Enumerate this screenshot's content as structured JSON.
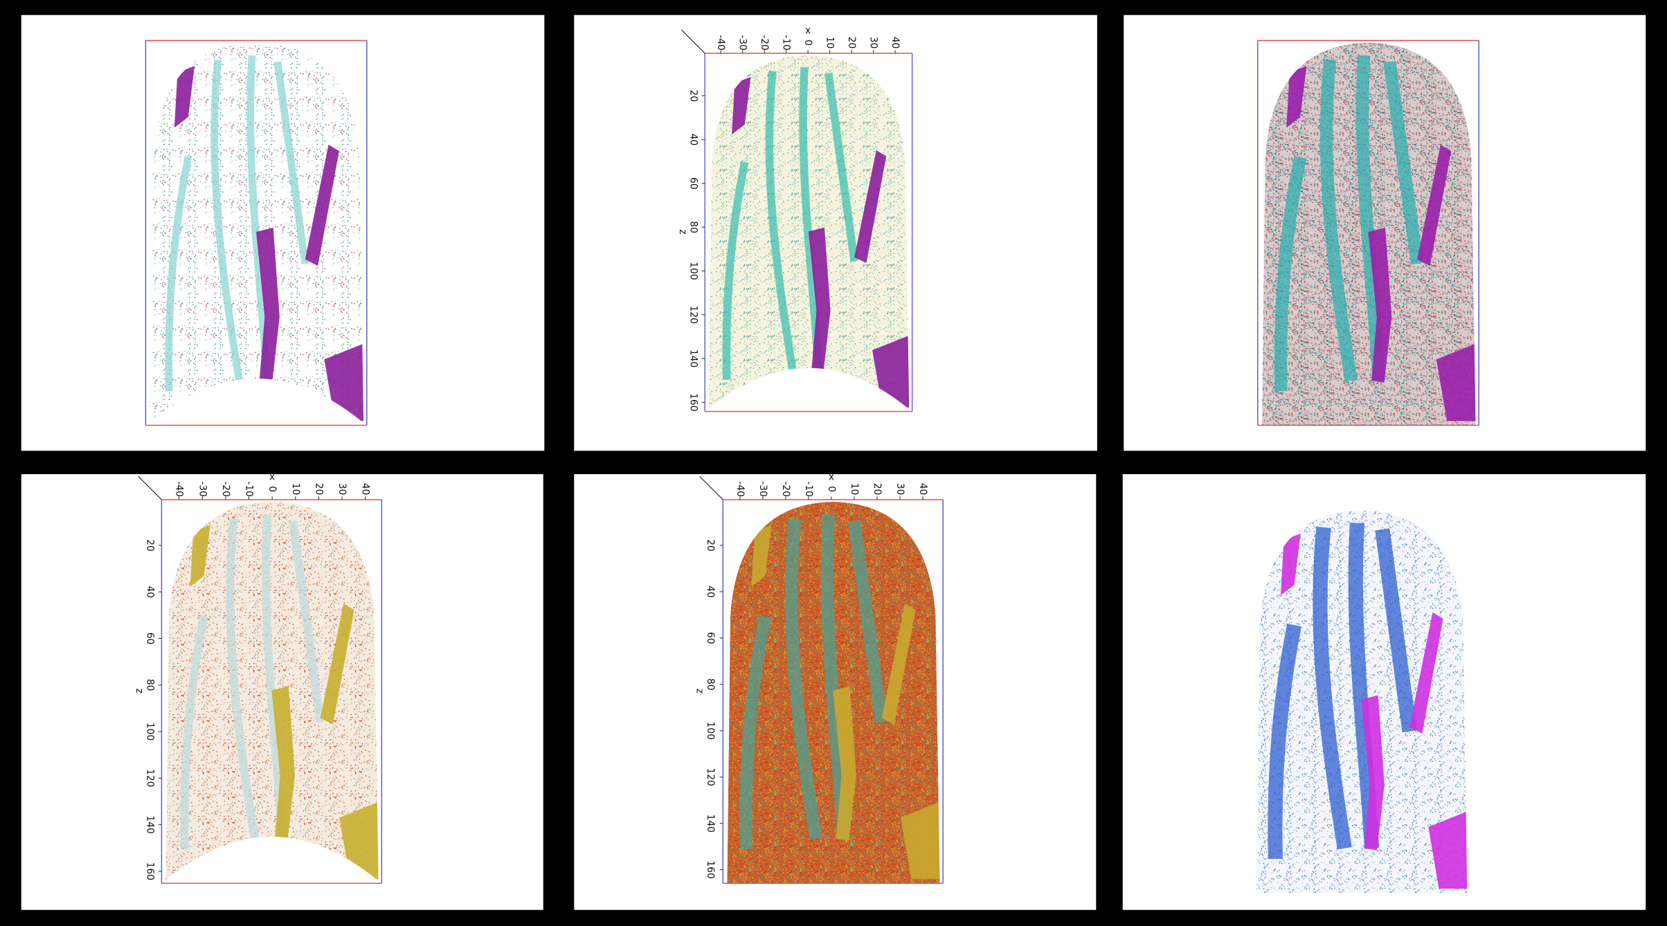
{
  "panels": {
    "top_middle": {
      "x_label": "x",
      "z_label": "z",
      "x_ticks": [
        -40,
        -30,
        -20,
        -10,
        0,
        10,
        20,
        30,
        40
      ],
      "z_ticks": [
        20,
        40,
        60,
        80,
        100,
        120,
        140,
        160
      ]
    },
    "bottom_left": {
      "x_label": "x",
      "z_label": "z",
      "x_ticks": [
        -40,
        -30,
        -20,
        -10,
        0,
        10,
        20,
        30,
        40
      ],
      "z_ticks": [
        20,
        40,
        60,
        80,
        100,
        120,
        140,
        160
      ]
    },
    "bottom_middle": {
      "x_label": "x",
      "z_label": "z",
      "x_ticks": [
        -40,
        -30,
        -20,
        -10,
        0,
        10,
        20,
        30,
        40
      ],
      "z_ticks": [
        20,
        40,
        60,
        80,
        100,
        120,
        140,
        160
      ]
    }
  }
}
